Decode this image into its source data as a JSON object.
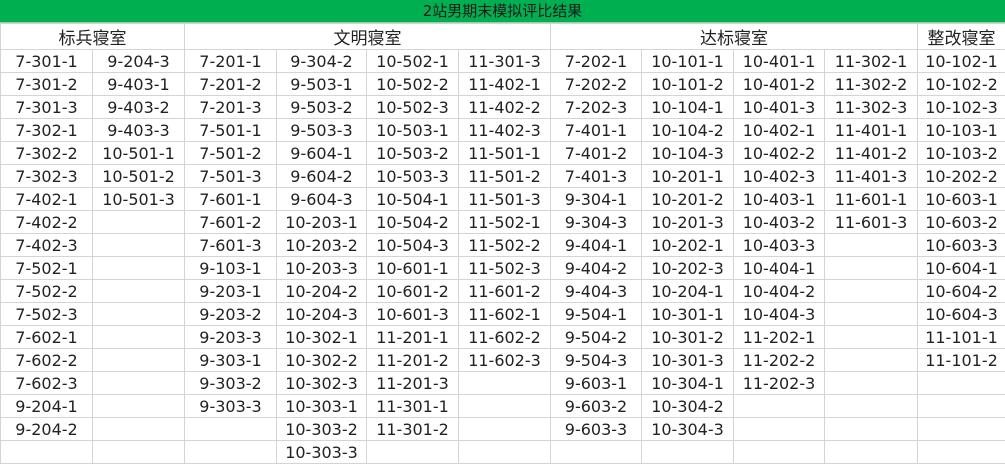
{
  "title": "2站男期末模拟评比结果",
  "accent_color": "#00b050",
  "groups": [
    {
      "label": "标兵寝室",
      "span": 2
    },
    {
      "label": "文明寝室",
      "span": 4
    },
    {
      "label": "达标寝室",
      "span": 4
    },
    {
      "label": "整改寝室",
      "span": 1
    }
  ],
  "columns": [
    [
      "7-301-1",
      "7-301-2",
      "7-301-3",
      "7-302-1",
      "7-302-2",
      "7-302-3",
      "7-402-1",
      "7-402-2",
      "7-402-3",
      "7-502-1",
      "7-502-2",
      "7-502-3",
      "7-602-1",
      "7-602-2",
      "7-602-3",
      "9-204-1",
      "9-204-2"
    ],
    [
      "9-204-3",
      "9-403-1",
      "9-403-2",
      "9-403-3",
      "10-501-1",
      "10-501-2",
      "10-501-3"
    ],
    [
      "7-201-1",
      "7-201-2",
      "7-201-3",
      "7-501-1",
      "7-501-2",
      "7-501-3",
      "7-601-1",
      "7-601-2",
      "7-601-3",
      "9-103-1",
      "9-203-1",
      "9-203-2",
      "9-203-3",
      "9-303-1",
      "9-303-2",
      "9-303-3"
    ],
    [
      "9-304-2",
      "9-503-1",
      "9-503-2",
      "9-503-3",
      "9-604-1",
      "9-604-2",
      "9-604-3",
      "10-203-1",
      "10-203-2",
      "10-203-3",
      "10-204-2",
      "10-204-3",
      "10-302-1",
      "10-302-2",
      "10-302-3",
      "10-303-1",
      "10-303-2",
      "10-303-3"
    ],
    [
      "10-502-1",
      "10-502-2",
      "10-502-3",
      "10-503-1",
      "10-503-2",
      "10-503-3",
      "10-504-1",
      "10-504-2",
      "10-504-3",
      "10-601-1",
      "10-601-2",
      "10-601-3",
      "11-201-1",
      "11-201-2",
      "11-201-3",
      "11-301-1",
      "11-301-2"
    ],
    [
      "11-301-3",
      "11-402-1",
      "11-402-2",
      "11-402-3",
      "11-501-1",
      "11-501-2",
      "11-501-3",
      "11-502-1",
      "11-502-2",
      "11-502-3",
      "11-601-2",
      "11-602-1",
      "11-602-2",
      "11-602-3"
    ],
    [
      "7-202-1",
      "7-202-2",
      "7-202-3",
      "7-401-1",
      "7-401-2",
      "7-401-3",
      "9-304-1",
      "9-304-3",
      "9-404-1",
      "9-404-2",
      "9-404-3",
      "9-504-1",
      "9-504-2",
      "9-504-3",
      "9-603-1",
      "9-603-2",
      "9-603-3"
    ],
    [
      "10-101-1",
      "10-101-2",
      "10-104-1",
      "10-104-2",
      "10-104-3",
      "10-201-1",
      "10-201-2",
      "10-201-3",
      "10-202-1",
      "10-202-3",
      "10-204-1",
      "10-301-1",
      "10-301-2",
      "10-301-3",
      "10-304-1",
      "10-304-2",
      "10-304-3"
    ],
    [
      "10-401-1",
      "10-401-2",
      "10-401-3",
      "10-402-1",
      "10-402-2",
      "10-402-3",
      "10-403-1",
      "10-403-2",
      "10-403-3",
      "10-404-1",
      "10-404-2",
      "10-404-3",
      "11-202-1",
      "11-202-2",
      "11-202-3"
    ],
    [
      "11-302-1",
      "11-302-2",
      "11-302-3",
      "11-401-1",
      "11-401-2",
      "11-401-3",
      "11-601-1",
      "11-601-3"
    ],
    [
      "10-102-1",
      "10-102-2",
      "10-102-3",
      "10-103-1",
      "10-103-2",
      "10-202-2",
      "10-603-1",
      "10-603-2",
      "10-603-3",
      "10-604-1",
      "10-604-2",
      "10-604-3",
      "11-101-1",
      "11-101-2"
    ]
  ]
}
